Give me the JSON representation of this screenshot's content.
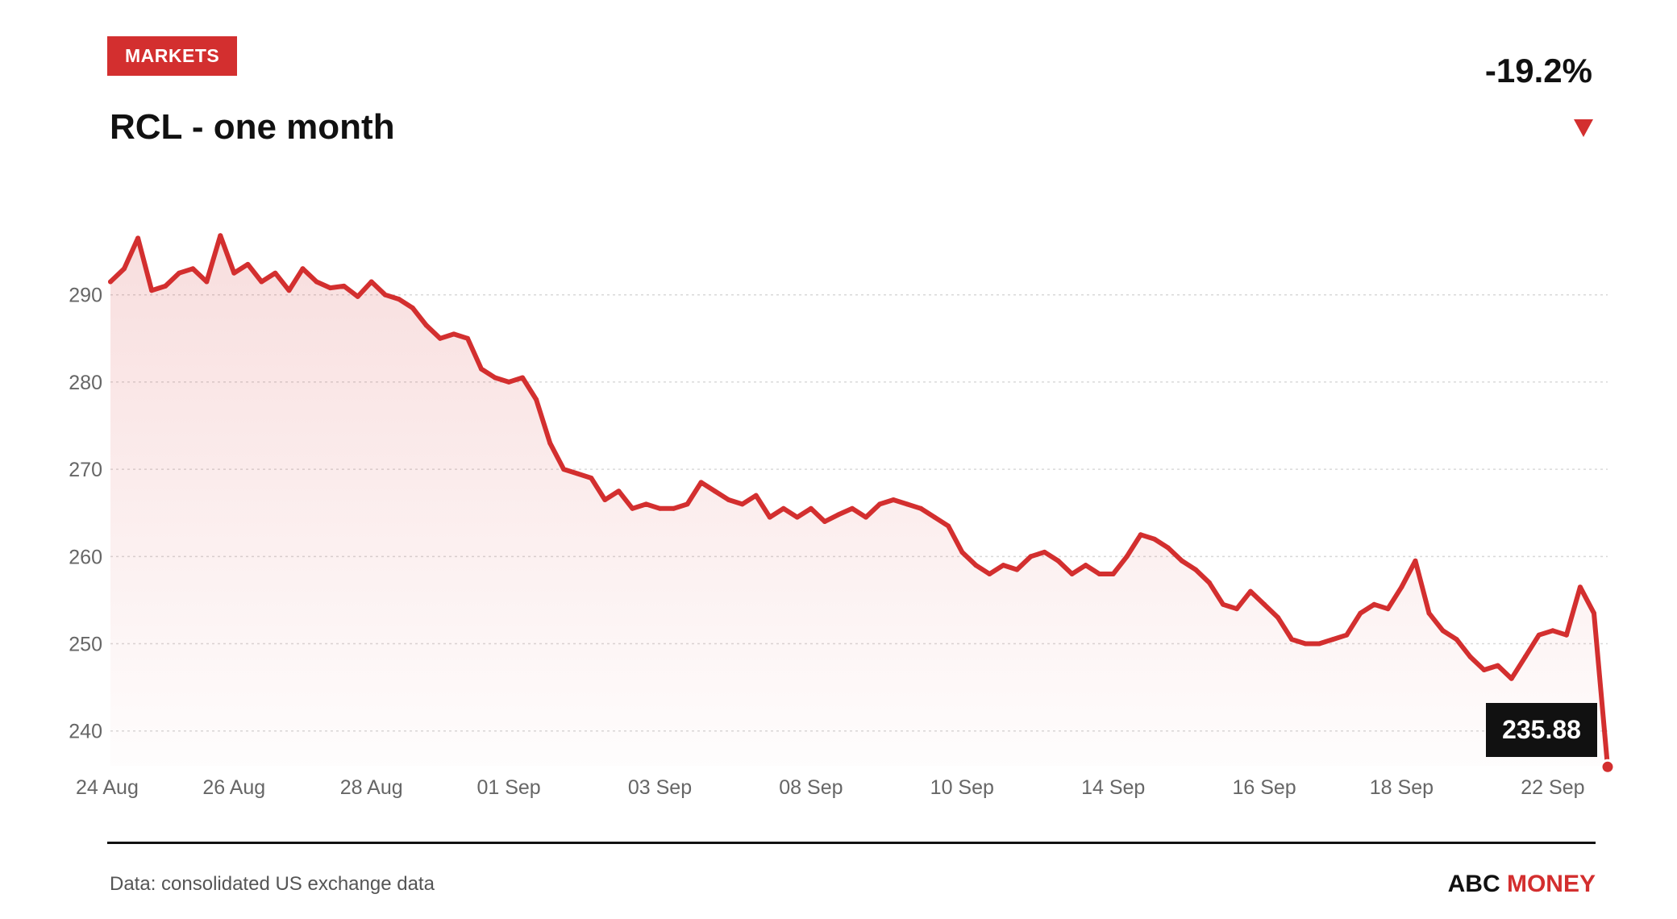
{
  "header": {
    "badge": "MARKETS",
    "title": "RCL - one month",
    "change": "-19.2%"
  },
  "footer": {
    "source": "Data: consolidated US exchange data",
    "brand_part1": "ABC",
    "brand_part2": "MONEY"
  },
  "colors": {
    "accent": "#d32f2f",
    "text": "#111111",
    "muted": "#666666",
    "grid": "#d9d9d9",
    "callout_bg": "#111111"
  },
  "chart_data": {
    "type": "area",
    "ylim": [
      236,
      297
    ],
    "yticks": [
      240,
      250,
      260,
      270,
      280,
      290
    ],
    "grid": true,
    "xticks": [
      "24 Aug",
      "26 Aug",
      "28 Aug",
      "01 Sep",
      "03 Sep",
      "08 Sep",
      "10 Sep",
      "14 Sep",
      "16 Sep",
      "18 Sep",
      "22 Sep"
    ],
    "xtick_index": [
      0,
      9,
      19,
      29,
      40,
      51,
      62,
      73,
      84,
      94,
      105
    ],
    "last_value_label": "235.88",
    "series": [
      {
        "values": [
          291.5,
          293.0,
          296.5,
          290.5,
          291.0,
          292.5,
          293.0,
          291.5,
          296.8,
          292.5,
          293.5,
          291.5,
          292.5,
          290.5,
          293.0,
          291.5,
          290.8,
          291.0,
          289.8,
          291.5,
          290.0,
          289.5,
          288.5,
          286.5,
          285.0,
          285.5,
          285.0,
          281.5,
          280.5,
          280.0,
          280.5,
          278.0,
          273.0,
          270.0,
          269.5,
          269.0,
          266.5,
          267.5,
          265.5,
          266.0,
          265.5,
          265.5,
          266.0,
          268.5,
          267.5,
          266.5,
          266.0,
          267.0,
          264.5,
          265.5,
          264.5,
          265.5,
          264.0,
          264.8,
          265.5,
          264.5,
          266.0,
          266.5,
          266.0,
          265.5,
          264.5,
          263.5,
          260.5,
          259.0,
          258.0,
          259.0,
          258.5,
          260.0,
          260.5,
          259.5,
          258.0,
          259.0,
          258.0,
          258.0,
          260.0,
          262.5,
          262.0,
          261.0,
          259.5,
          258.5,
          257.0,
          254.5,
          254.0,
          256.0,
          254.5,
          253.0,
          250.5,
          250.0,
          250.0,
          250.5,
          251.0,
          253.5,
          254.5,
          254.0,
          256.5,
          259.5,
          253.5,
          251.5,
          250.5,
          248.5,
          247.0,
          247.5,
          246.0,
          248.5,
          251.0,
          251.5,
          251.0,
          256.5,
          253.5,
          235.88
        ]
      }
    ]
  }
}
